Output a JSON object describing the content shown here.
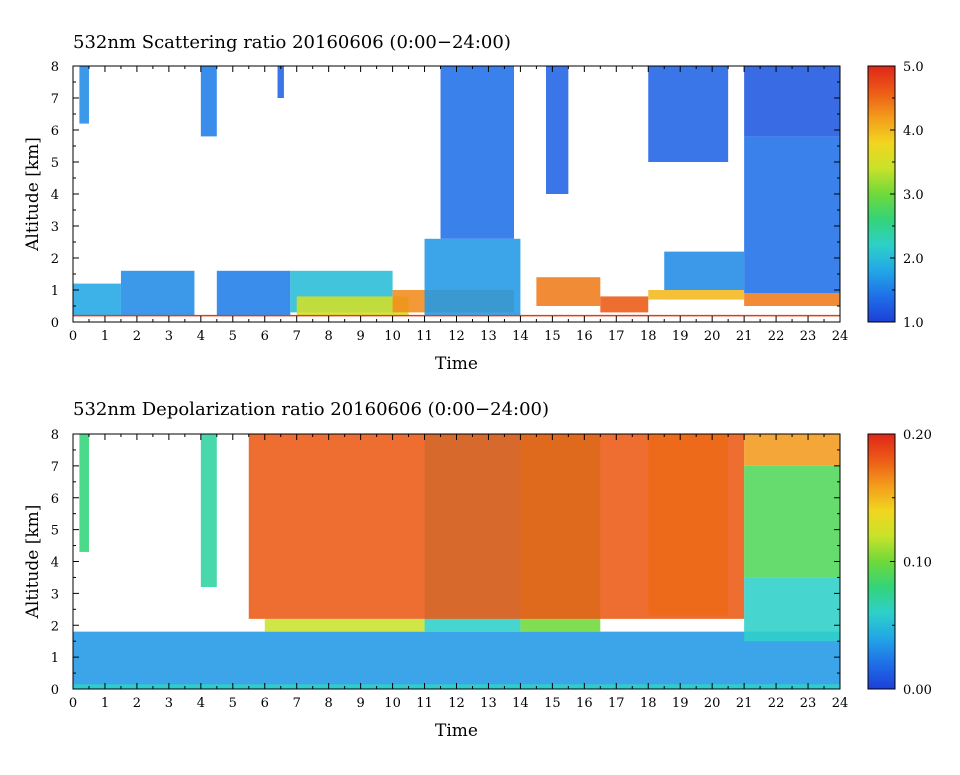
{
  "colors": {
    "background": "#ffffff",
    "axis": "#000000",
    "surface_line": "#e53a10",
    "colormap": [
      "#1d3fd8",
      "#1f6fe8",
      "#22a7e6",
      "#2dd0c8",
      "#33d47a",
      "#6fd93a",
      "#c8e22a",
      "#f2d51f",
      "#f39b1c",
      "#ec5a16",
      "#e0261a"
    ]
  },
  "chart_data": [
    {
      "type": "heatmap",
      "title": "532nm Scattering ratio  20160606 (0:00−24:00)",
      "xlabel": "Time",
      "ylabel": "Altitude [km]",
      "x_ticks": [
        "0",
        "1",
        "2",
        "3",
        "4",
        "5",
        "6",
        "7",
        "8",
        "9",
        "10",
        "11",
        "12",
        "13",
        "14",
        "15",
        "16",
        "17",
        "18",
        "19",
        "20",
        "21",
        "22",
        "23",
        "24"
      ],
      "y_ticks": [
        "0",
        "1",
        "2",
        "3",
        "4",
        "5",
        "6",
        "7",
        "8"
      ],
      "xlim": [
        0,
        24
      ],
      "ylim": [
        0,
        8
      ],
      "colorbar": {
        "min": 1.0,
        "max": 5.0,
        "tick_values": [
          1.0,
          2.0,
          3.0,
          4.0,
          5.0
        ],
        "tick_labels": [
          "1.0",
          "2.0",
          "3.0",
          "4.0",
          "5.0"
        ]
      },
      "surface_line_altitude_km": 0.2,
      "features": [
        {
          "x": [
            0.0,
            1.5
          ],
          "y": [
            0.2,
            1.2
          ],
          "value": 1.8
        },
        {
          "x": [
            1.5,
            3.8
          ],
          "y": [
            0.2,
            1.6
          ],
          "value": 1.6
        },
        {
          "x": [
            4.5,
            6.8
          ],
          "y": [
            0.2,
            1.6
          ],
          "value": 1.5
        },
        {
          "x": [
            6.8,
            10.0
          ],
          "y": [
            0.3,
            1.6
          ],
          "value": 2.0
        },
        {
          "x": [
            7.0,
            10.5
          ],
          "y": [
            0.2,
            0.8
          ],
          "value": 3.5
        },
        {
          "x": [
            10.0,
            13.8
          ],
          "y": [
            0.3,
            1.0
          ],
          "value": 4.3
        },
        {
          "x": [
            11.0,
            14.0
          ],
          "y": [
            0.2,
            2.6
          ],
          "value": 1.7
        },
        {
          "x": [
            14.5,
            16.5
          ],
          "y": [
            0.5,
            1.4
          ],
          "value": 4.4
        },
        {
          "x": [
            16.5,
            18.0
          ],
          "y": [
            0.3,
            0.8
          ],
          "value": 4.6
        },
        {
          "x": [
            18.5,
            21.0
          ],
          "y": [
            1.0,
            2.2
          ],
          "value": 1.6
        },
        {
          "x": [
            18.0,
            21.0
          ],
          "y": [
            0.7,
            1.0
          ],
          "value": 4.0
        },
        {
          "x": [
            21.0,
            24.0
          ],
          "y": [
            0.5,
            0.9
          ],
          "value": 4.4
        },
        {
          "x": [
            21.0,
            24.0
          ],
          "y": [
            0.9,
            5.8
          ],
          "value": 1.4
        },
        {
          "x": [
            21.0,
            24.0
          ],
          "y": [
            5.8,
            8.0
          ],
          "value": 1.2
        },
        {
          "x": [
            0.2,
            0.5
          ],
          "y": [
            6.2,
            8.0
          ],
          "value": 1.6
        },
        {
          "x": [
            4.0,
            4.5
          ],
          "y": [
            5.8,
            8.0
          ],
          "value": 1.5
        },
        {
          "x": [
            6.4,
            6.6
          ],
          "y": [
            7.0,
            8.0
          ],
          "value": 1.3
        },
        {
          "x": [
            11.5,
            13.8
          ],
          "y": [
            2.6,
            8.0
          ],
          "value": 1.4
        },
        {
          "x": [
            14.8,
            15.5
          ],
          "y": [
            4.0,
            8.0
          ],
          "value": 1.3
        },
        {
          "x": [
            18.0,
            20.5
          ],
          "y": [
            5.0,
            8.0
          ],
          "value": 1.3
        }
      ]
    },
    {
      "type": "heatmap",
      "title": "532nm Depolarization ratio  20160606 (0:00−24:00)",
      "xlabel": "Time",
      "ylabel": "Altitude [km]",
      "x_ticks": [
        "0",
        "1",
        "2",
        "3",
        "4",
        "5",
        "6",
        "7",
        "8",
        "9",
        "10",
        "11",
        "12",
        "13",
        "14",
        "15",
        "16",
        "17",
        "18",
        "19",
        "20",
        "21",
        "22",
        "23",
        "24"
      ],
      "y_ticks": [
        "0",
        "1",
        "2",
        "3",
        "4",
        "5",
        "6",
        "7",
        "8"
      ],
      "xlim": [
        0,
        24
      ],
      "ylim": [
        0,
        8
      ],
      "colorbar": {
        "min": 0.0,
        "max": 0.2,
        "tick_values": [
          0.0,
          0.1,
          0.2
        ],
        "tick_labels": [
          "0.00",
          "0.10",
          "0.20"
        ]
      },
      "features": [
        {
          "x": [
            0.0,
            24.0
          ],
          "y": [
            0.0,
            1.8
          ],
          "value": 0.035
        },
        {
          "x": [
            0.0,
            24.0
          ],
          "y": [
            0.0,
            0.15
          ],
          "value": 0.06
        },
        {
          "x": [
            0.2,
            0.5
          ],
          "y": [
            4.3,
            8.0
          ],
          "value": 0.08
        },
        {
          "x": [
            4.0,
            4.5
          ],
          "y": [
            3.2,
            8.0
          ],
          "value": 0.07
        },
        {
          "x": [
            6.0,
            11.0
          ],
          "y": [
            1.8,
            2.2
          ],
          "value": 0.12
        },
        {
          "x": [
            11.0,
            14.0
          ],
          "y": [
            1.8,
            8.0
          ],
          "value": 0.06
        },
        {
          "x": [
            14.0,
            16.5
          ],
          "y": [
            1.8,
            8.0
          ],
          "value": 0.1
        },
        {
          "x": [
            18.0,
            20.5
          ],
          "y": [
            2.3,
            8.0
          ],
          "value": 0.14
        },
        {
          "x": [
            21.0,
            24.0
          ],
          "y": [
            1.5,
            3.5
          ],
          "value": 0.06
        },
        {
          "x": [
            21.0,
            24.0
          ],
          "y": [
            3.5,
            7.0
          ],
          "value": 0.09
        },
        {
          "x": [
            21.0,
            24.0
          ],
          "y": [
            7.0,
            8.0
          ],
          "value": 0.16
        },
        {
          "x": [
            5.5,
            21.0
          ],
          "y": [
            2.2,
            8.0
          ],
          "value": 0.18
        }
      ]
    }
  ]
}
